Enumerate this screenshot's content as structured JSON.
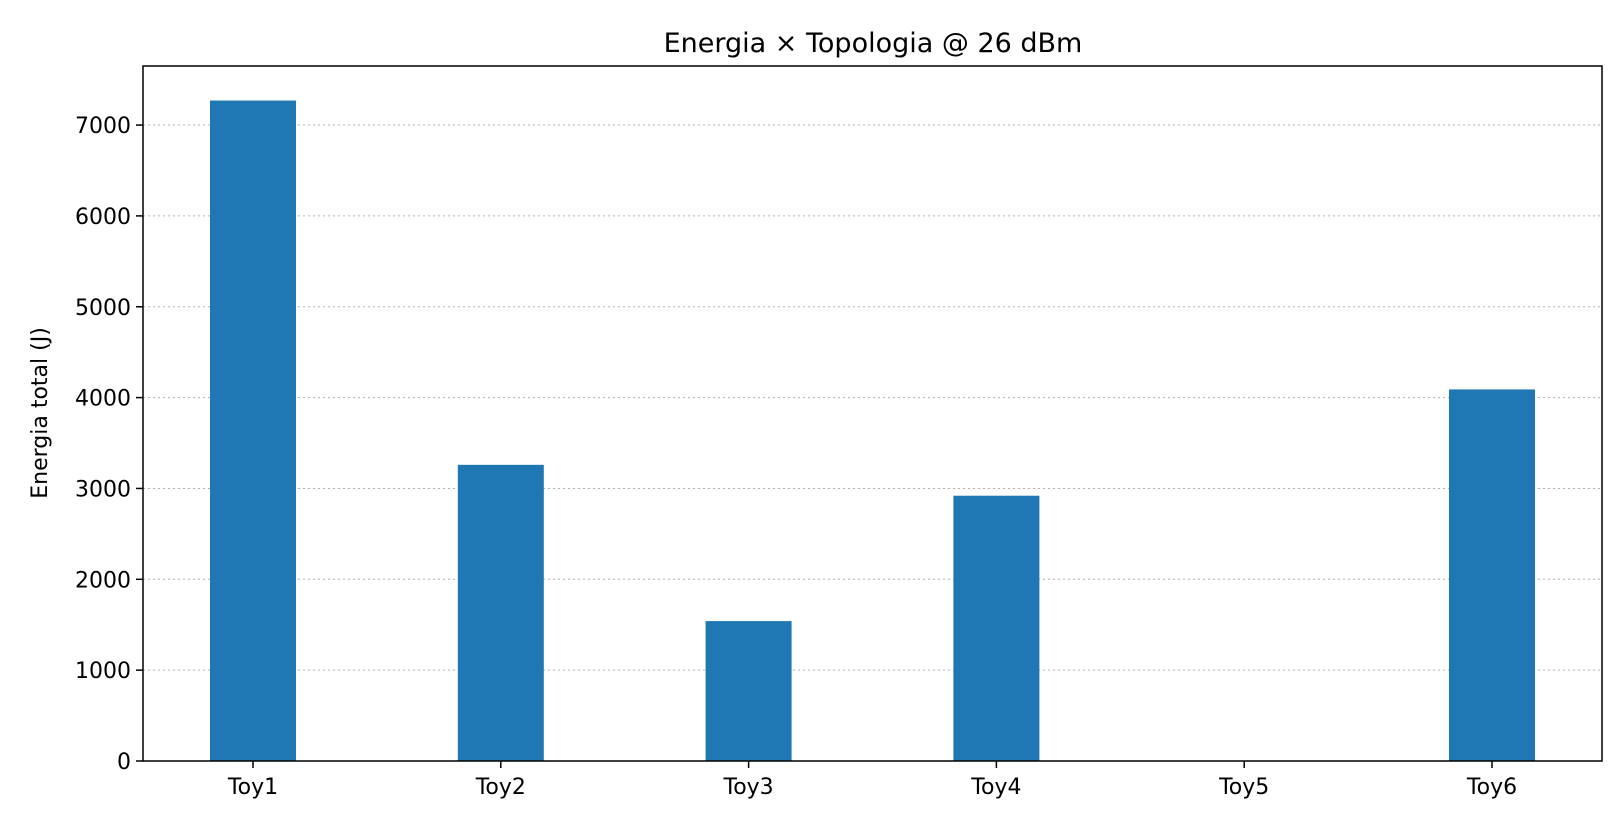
{
  "chart_data": {
    "type": "bar",
    "title": "Energia × Topologia @ 26 dBm",
    "xlabel": "",
    "ylabel": "Energia total (J)",
    "categories": [
      "Toy1",
      "Toy2",
      "Toy3",
      "Toy4",
      "Toy5",
      "Toy6"
    ],
    "values": [
      7270,
      3260,
      1540,
      2920,
      0,
      4090
    ],
    "ylim": [
      0,
      7650
    ],
    "yticks": [
      0,
      1000,
      2000,
      3000,
      4000,
      5000,
      6000,
      7000
    ],
    "grid": "y-dotted",
    "bar_color": "#1f77b4",
    "legend": "none"
  }
}
